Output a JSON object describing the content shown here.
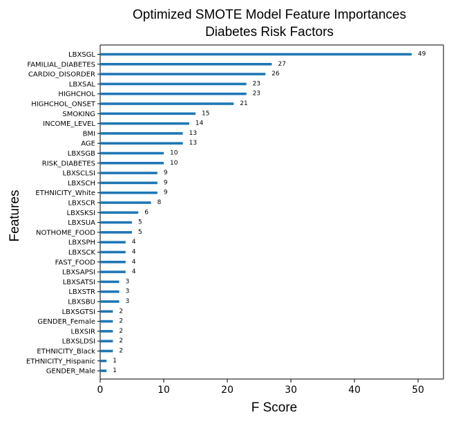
{
  "chart_data": {
    "type": "bar",
    "orientation": "horizontal",
    "title": "Optimized SMOTE Model Feature Importances",
    "subtitle": "Diabetes Risk Factors",
    "xlabel": "F Score",
    "ylabel": "Features",
    "xlim": [
      0,
      54
    ],
    "xticks": [
      0,
      10,
      20,
      30,
      40,
      50
    ],
    "grid": false,
    "bar_color": "#1f77b4",
    "categories": [
      "LBXSGL",
      "FAMILIAL_DIABETES",
      "CARDIO_DISORDER",
      "LBXSAL",
      "HIGHCHOL",
      "HIGHCHOL_ONSET",
      "SMOKING",
      "INCOME_LEVEL",
      "BMI",
      "AGE",
      "LBXSGB",
      "RISK_DIABETES",
      "LBXSCLSI",
      "LBXSCH",
      "ETHNICITY_White",
      "LBXSCR",
      "LBXSKSI",
      "LBXSUA",
      "NOTHOME_FOOD",
      "LBXSPH",
      "LBXSCK",
      "FAST_FOOD",
      "LBXSAPSI",
      "LBXSATSI",
      "LBXSTR",
      "LBXSBU",
      "LBXSGTSI",
      "GENDER_Female",
      "LBXSIR",
      "LBXSLDSI",
      "ETHNICITY_Black",
      "ETHNICITY_Hispanic",
      "GENDER_Male"
    ],
    "values": [
      49,
      27,
      26,
      23,
      23,
      21,
      15,
      14,
      13,
      13,
      10,
      10,
      9,
      9,
      9,
      8,
      6,
      5,
      5,
      4,
      4,
      4,
      4,
      3,
      3,
      3,
      2,
      2,
      2,
      2,
      2,
      1,
      1
    ]
  }
}
